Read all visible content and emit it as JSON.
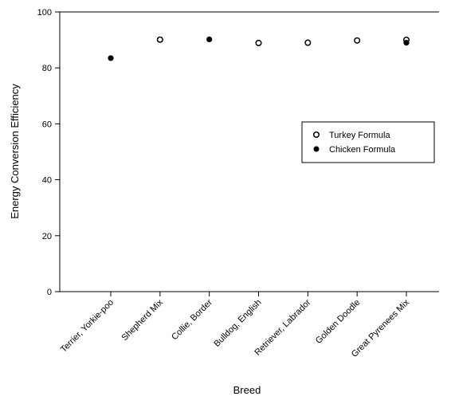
{
  "chart_data": {
    "type": "scatter",
    "xlabel": "Breed",
    "ylabel": "Energy Conversion Efficiency",
    "categories": [
      "Terrier, Yorkie-poo",
      "Shepherd Mix",
      "Collie, Border",
      "Bulldog, English",
      "Retriever, Labrador",
      "Golden Doodle",
      "Great Pyrenees Mix"
    ],
    "ylim": [
      0,
      100
    ],
    "yticks": [
      0,
      20,
      40,
      60,
      80,
      100
    ],
    "grid": false,
    "legend_position": "right",
    "series": [
      {
        "name": "Turkey Formula",
        "marker": "open-circle",
        "points": [
          {
            "category": "Shepherd Mix",
            "y": 90.1
          },
          {
            "category": "Bulldog, English",
            "y": 88.9
          },
          {
            "category": "Retriever, Labrador",
            "y": 89.0
          },
          {
            "category": "Golden Doodle",
            "y": 89.8
          },
          {
            "category": "Great Pyrenees Mix",
            "y": 90.0
          }
        ]
      },
      {
        "name": "Chicken Formula",
        "marker": "filled-circle",
        "points": [
          {
            "category": "Terrier, Yorkie-poo",
            "y": 83.5
          },
          {
            "category": "Collie, Border",
            "y": 90.2
          },
          {
            "category": "Great Pyrenees Mix",
            "y": 89.0
          }
        ]
      }
    ],
    "colors": {
      "marker": "#000000",
      "axis": "#000000",
      "background": "#ffffff"
    }
  }
}
